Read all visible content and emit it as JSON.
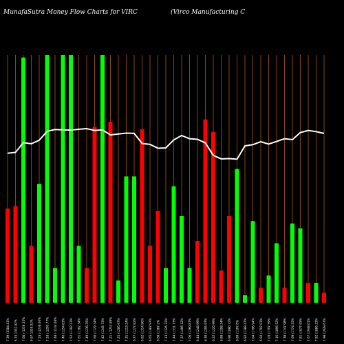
{
  "header": {
    "left_text": "MunafaSutra  Money Flow  Charts for VIRC",
    "right_text": "(Virco  Manufacturing C"
  },
  "colors": {
    "background": "#000000",
    "up": "#00ff00",
    "down": "#ff0000",
    "grid": "#8b4513",
    "price_line": "#ffffff",
    "text": "#ffffff"
  },
  "chart_data": {
    "type": "bar",
    "title": "",
    "xlabel": "",
    "ylabel": "",
    "ylim": [
      0,
      100
    ],
    "grid": true,
    "categories": [
      "7.39 (3584.41%",
      "6.74 1332.82%",
      "7.60 (-1256.35%",
      "6.97 1329.02%",
      "7.53 (-1238.66%",
      "7.33 (-1205.77%",
      "7.48 (-1134.68%",
      "7.46 (1254.83%",
      "7.52 (1192.13%",
      "7.61 (1182.34%",
      "7.49 (1236.35%",
      "7.60 (1179.34%",
      "7.42 (1245.73%",
      "7.21 (-1253.99%",
      "7.25 (1206.97%",
      "7.31 (1213.24%",
      "6.77 (1277.82%",
      "6.92 (1314.96%",
      "6.65 (1387.97%",
      "6.68 (1387.2%",
      "7.13 (1326.22%",
      "7.44 (1331.73%",
      "7.37 (1406.12%",
      "7.06 (1269.87%",
      "6.44 (1248.99%",
      "6.30 (1295.97%",
      "6.22 (1220.99%",
      "6.88 (1298.34%",
      "6.90 (1080.72%",
      "6.89 (1107.6%",
      "6.92 (1288.47%",
      "7.04 (1796.94%",
      "6.92 (1797.03%",
      "7.03 (1797.59%",
      "7.16 (1896.52%",
      "7.38 (1747.98%",
      "7.69 (1774.55%",
      "7.81 (1877.65%",
      "7.67 (1948.01%",
      "7.92 (1886.23%",
      "7.98 (1928.67%"
    ],
    "series": [
      {
        "values": [
          38,
          39,
          99,
          23,
          48,
          100,
          14,
          100,
          100,
          23,
          14,
          71,
          100,
          73,
          9,
          51,
          51,
          70,
          23,
          37,
          14,
          47,
          35,
          14,
          25,
          74,
          69,
          13,
          35,
          54,
          3,
          33,
          6,
          11,
          24,
          6,
          32,
          30,
          8,
          8,
          4
        ],
        "direction": [
          "down",
          "down",
          "up",
          "down",
          "up",
          "up",
          "up",
          "up",
          "up",
          "up",
          "down",
          "down",
          "up",
          "down",
          "up",
          "up",
          "up",
          "down",
          "down",
          "down",
          "up",
          "up",
          "up",
          "up",
          "down",
          "down",
          "down",
          "down",
          "down",
          "up",
          "up",
          "up",
          "down",
          "up",
          "up",
          "down",
          "up",
          "up",
          "down",
          "up",
          "down"
        ]
      }
    ],
    "price_line": [
      6.8,
      6.83,
      7.16,
      7.12,
      7.24,
      7.54,
      7.6,
      7.59,
      7.58,
      7.61,
      7.63,
      7.57,
      7.59,
      7.42,
      7.45,
      7.48,
      7.47,
      7.13,
      7.1,
      6.97,
      6.98,
      7.25,
      7.4,
      7.29,
      7.27,
      7.15,
      6.73,
      6.61,
      6.62,
      6.6,
      7.05,
      7.09,
      7.19,
      7.11,
      7.2,
      7.29,
      7.26,
      7.5,
      7.57,
      7.53,
      7.47
    ]
  }
}
